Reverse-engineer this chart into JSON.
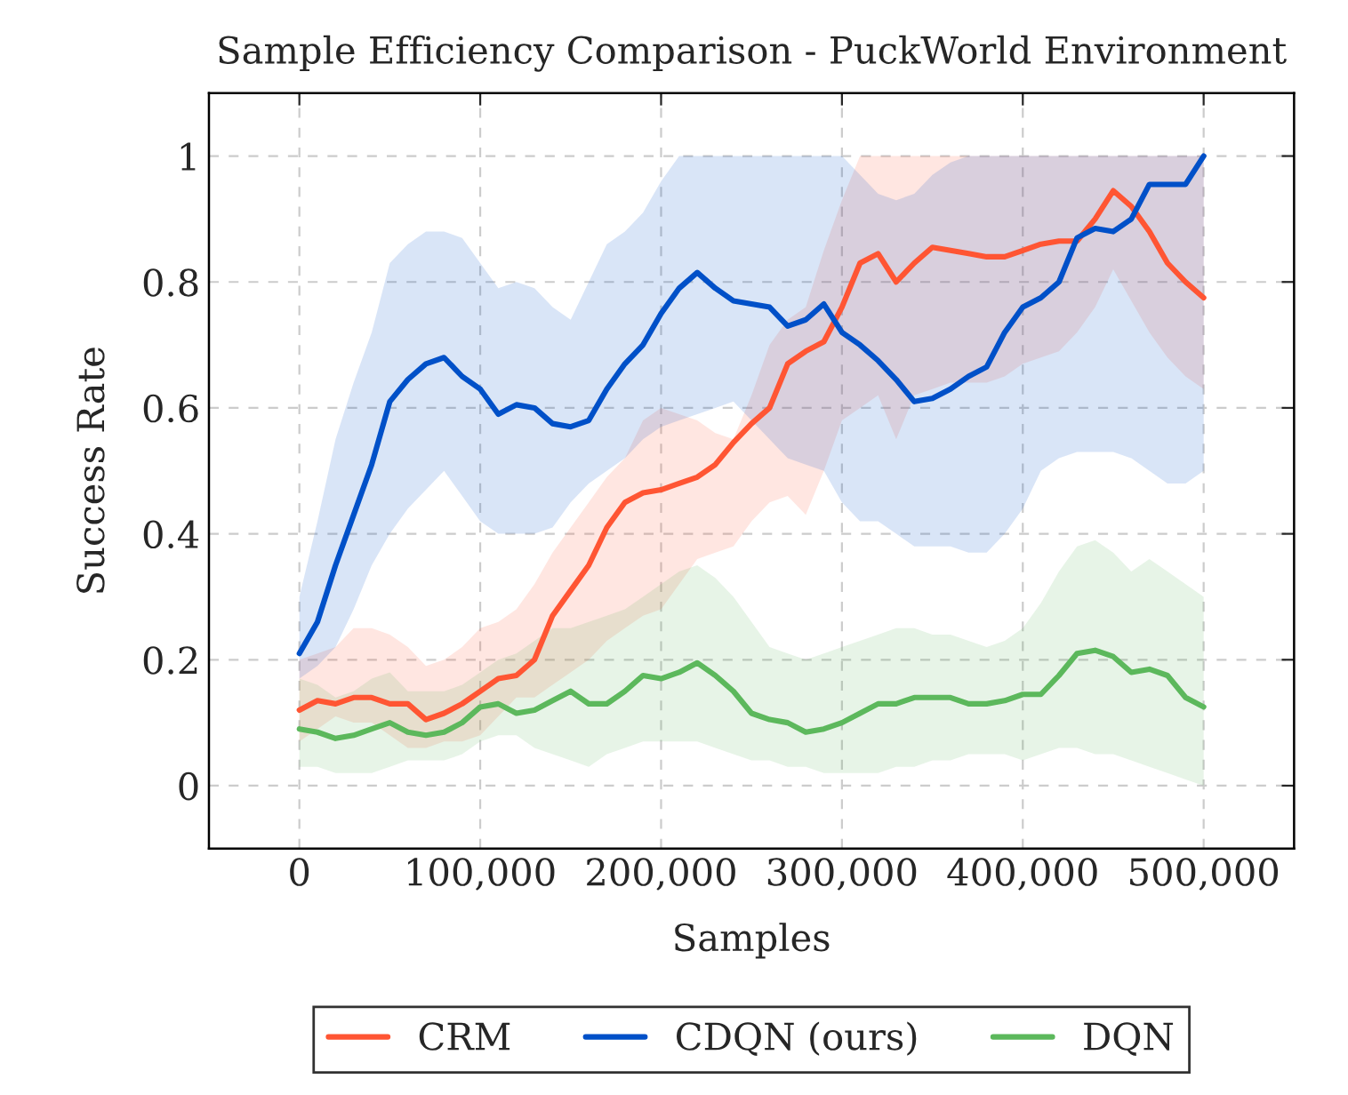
{
  "chart_data": {
    "type": "line",
    "title": "Sample Efficiency Comparison - PuckWorld Environment",
    "xlabel": "Samples",
    "ylabel": "Success Rate",
    "x": [
      0,
      10000,
      20000,
      30000,
      40000,
      50000,
      60000,
      70000,
      80000,
      90000,
      100000,
      110000,
      120000,
      130000,
      140000,
      150000,
      160000,
      170000,
      180000,
      190000,
      200000,
      210000,
      220000,
      230000,
      240000,
      250000,
      260000,
      270000,
      280000,
      290000,
      300000,
      310000,
      320000,
      330000,
      340000,
      350000,
      360000,
      370000,
      380000,
      390000,
      400000,
      410000,
      420000,
      430000,
      440000,
      450000,
      460000,
      470000,
      480000,
      490000,
      500000
    ],
    "series": [
      {
        "name": "CRM",
        "color": "#ff5533",
        "values": [
          0.12,
          0.135,
          0.13,
          0.14,
          0.14,
          0.13,
          0.13,
          0.105,
          0.115,
          0.13,
          0.15,
          0.17,
          0.175,
          0.2,
          0.27,
          0.31,
          0.35,
          0.41,
          0.45,
          0.465,
          0.47,
          0.48,
          0.49,
          0.51,
          0.545,
          0.575,
          0.6,
          0.67,
          0.69,
          0.705,
          0.76,
          0.83,
          0.845,
          0.8,
          0.83,
          0.855,
          0.85,
          0.845,
          0.84,
          0.84,
          0.85,
          0.86,
          0.865,
          0.865,
          0.9,
          0.945,
          0.92,
          0.88,
          0.83,
          0.8,
          0.775
        ],
        "upper": [
          0.2,
          0.21,
          0.22,
          0.25,
          0.25,
          0.24,
          0.22,
          0.19,
          0.2,
          0.22,
          0.25,
          0.26,
          0.28,
          0.32,
          0.37,
          0.41,
          0.45,
          0.49,
          0.52,
          0.58,
          0.6,
          0.59,
          0.58,
          0.56,
          0.55,
          0.62,
          0.7,
          0.74,
          0.76,
          0.85,
          0.93,
          1,
          1,
          1,
          1,
          1,
          1,
          1,
          1,
          1,
          1,
          1,
          1,
          1,
          1,
          1,
          1,
          1,
          1,
          1,
          1
        ],
        "lower": [
          0.07,
          0.09,
          0.11,
          0.1,
          0.1,
          0.08,
          0.06,
          0.06,
          0.07,
          0.07,
          0.08,
          0.11,
          0.14,
          0.14,
          0.16,
          0.18,
          0.2,
          0.23,
          0.25,
          0.27,
          0.28,
          0.32,
          0.36,
          0.37,
          0.38,
          0.42,
          0.45,
          0.46,
          0.43,
          0.5,
          0.58,
          0.6,
          0.62,
          0.55,
          0.62,
          0.63,
          0.64,
          0.64,
          0.64,
          0.65,
          0.67,
          0.68,
          0.69,
          0.72,
          0.76,
          0.82,
          0.77,
          0.72,
          0.68,
          0.65,
          0.63
        ]
      },
      {
        "name": "CDQN (ours)",
        "color": "#0050c8",
        "values": [
          0.21,
          0.26,
          0.35,
          0.43,
          0.51,
          0.61,
          0.645,
          0.67,
          0.68,
          0.65,
          0.63,
          0.59,
          0.605,
          0.6,
          0.575,
          0.57,
          0.58,
          0.63,
          0.67,
          0.7,
          0.75,
          0.79,
          0.815,
          0.79,
          0.77,
          0.765,
          0.76,
          0.73,
          0.74,
          0.765,
          0.72,
          0.7,
          0.675,
          0.645,
          0.61,
          0.615,
          0.63,
          0.65,
          0.665,
          0.72,
          0.76,
          0.775,
          0.8,
          0.87,
          0.885,
          0.88,
          0.9,
          0.955,
          0.955,
          0.955,
          1.0
        ],
        "upper": [
          0.3,
          0.42,
          0.55,
          0.64,
          0.72,
          0.83,
          0.86,
          0.88,
          0.88,
          0.87,
          0.83,
          0.79,
          0.8,
          0.79,
          0.76,
          0.74,
          0.8,
          0.86,
          0.88,
          0.91,
          0.96,
          1,
          1,
          1,
          1,
          1,
          1,
          1,
          1,
          1,
          1,
          0.97,
          0.94,
          0.93,
          0.94,
          0.97,
          0.99,
          1,
          1,
          1,
          1,
          1,
          1,
          1,
          1,
          1,
          1,
          1,
          1,
          1,
          1
        ],
        "lower": [
          0.17,
          0.19,
          0.22,
          0.28,
          0.35,
          0.4,
          0.44,
          0.47,
          0.5,
          0.46,
          0.42,
          0.4,
          0.4,
          0.4,
          0.41,
          0.45,
          0.48,
          0.5,
          0.52,
          0.55,
          0.57,
          0.58,
          0.59,
          0.6,
          0.61,
          0.58,
          0.55,
          0.52,
          0.51,
          0.5,
          0.45,
          0.42,
          0.42,
          0.4,
          0.38,
          0.38,
          0.38,
          0.37,
          0.37,
          0.4,
          0.44,
          0.5,
          0.52,
          0.53,
          0.53,
          0.53,
          0.52,
          0.5,
          0.48,
          0.48,
          0.5
        ]
      },
      {
        "name": "DQN",
        "color": "#5cb85c",
        "values": [
          0.09,
          0.085,
          0.075,
          0.08,
          0.09,
          0.1,
          0.085,
          0.08,
          0.085,
          0.1,
          0.125,
          0.13,
          0.115,
          0.12,
          0.135,
          0.15,
          0.13,
          0.13,
          0.15,
          0.175,
          0.17,
          0.18,
          0.195,
          0.175,
          0.15,
          0.115,
          0.105,
          0.1,
          0.085,
          0.09,
          0.1,
          0.115,
          0.13,
          0.13,
          0.14,
          0.14,
          0.14,
          0.13,
          0.13,
          0.135,
          0.145,
          0.145,
          0.175,
          0.21,
          0.215,
          0.205,
          0.18,
          0.185,
          0.175,
          0.14,
          0.125
        ],
        "upper": [
          0.17,
          0.16,
          0.14,
          0.15,
          0.17,
          0.18,
          0.15,
          0.15,
          0.15,
          0.16,
          0.18,
          0.2,
          0.21,
          0.23,
          0.25,
          0.25,
          0.26,
          0.27,
          0.28,
          0.3,
          0.32,
          0.34,
          0.35,
          0.33,
          0.3,
          0.26,
          0.22,
          0.21,
          0.2,
          0.21,
          0.22,
          0.23,
          0.24,
          0.25,
          0.25,
          0.24,
          0.24,
          0.23,
          0.22,
          0.23,
          0.25,
          0.29,
          0.34,
          0.38,
          0.39,
          0.37,
          0.34,
          0.36,
          0.34,
          0.32,
          0.3
        ],
        "lower": [
          0.03,
          0.03,
          0.02,
          0.02,
          0.02,
          0.03,
          0.04,
          0.04,
          0.04,
          0.05,
          0.07,
          0.08,
          0.08,
          0.06,
          0.05,
          0.04,
          0.03,
          0.05,
          0.06,
          0.07,
          0.07,
          0.07,
          0.07,
          0.06,
          0.05,
          0.04,
          0.04,
          0.03,
          0.03,
          0.02,
          0.02,
          0.02,
          0.02,
          0.03,
          0.03,
          0.04,
          0.04,
          0.05,
          0.05,
          0.05,
          0.04,
          0.05,
          0.06,
          0.06,
          0.05,
          0.05,
          0.04,
          0.03,
          0.02,
          0.01,
          0
        ]
      }
    ],
    "xlim": [
      -50000,
      550000
    ],
    "xticks": [
      0,
      {
        "value": 100000,
        "label": "100,000"
      },
      {
        "value": 200000,
        "label": "200,000"
      },
      {
        "value": 300000,
        "label": "300,000"
      },
      {
        "value": 400000,
        "label": "400,000"
      },
      {
        "value": 500000,
        "label": "500,000"
      }
    ],
    "ylim": [
      -0.1,
      1.1
    ],
    "yticks": [
      0,
      0.2,
      0.4,
      0.6,
      0.8,
      1
    ],
    "grid": true,
    "legend": "bottom",
    "line_style": "solid",
    "marker": "none"
  }
}
